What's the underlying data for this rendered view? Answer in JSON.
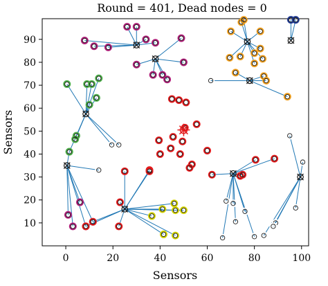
{
  "chart_data": {
    "type": "scatter",
    "title": "Round = 401, Dead nodes = 0",
    "xlabel": "Sensors",
    "ylabel": "Sensors",
    "xlim": [
      -10,
      103
    ],
    "ylim": [
      0,
      99
    ],
    "xticks": [
      0,
      20,
      40,
      60,
      80,
      100
    ],
    "yticks": [
      10,
      20,
      30,
      40,
      50,
      60,
      70,
      80,
      90
    ],
    "grid": false,
    "legend": "none",
    "sink": {
      "x": 50,
      "y": 50.5
    },
    "colors": {
      "link": "#1f77b4",
      "sink": "#e31a1c",
      "node_center": "#1f77b4",
      "ring_red": "#e41a1c",
      "ring_purple": "#b0207a",
      "ring_orange": "#f0a020",
      "ring_green": "#4daf4a",
      "ring_yellow": "#d4d400",
      "ring_navy": "#1f3a93",
      "ring_white": "#ffffff"
    },
    "clusters": [
      {
        "ring": "ring_purple",
        "head": {
          "x": 30,
          "y": 87.5
        },
        "members": [
          [
            26,
            95.5
          ],
          [
            30,
            95.5
          ],
          [
            34,
            90
          ],
          [
            38,
            88.5
          ],
          [
            8,
            89.5
          ],
          [
            12,
            87
          ],
          [
            18,
            86.5
          ]
        ]
      },
      {
        "ring": "ring_purple",
        "head": {
          "x": 38,
          "y": 81.5
        },
        "members": [
          [
            30,
            79
          ],
          [
            37,
            74.5
          ],
          [
            41,
            74.5
          ],
          [
            43,
            72.5
          ],
          [
            49,
            90.5
          ],
          [
            50,
            80
          ]
        ]
      },
      {
        "ring": "ring_orange",
        "head": {
          "x": 77,
          "y": 89
        },
        "members": [
          [
            74.5,
            97.5
          ],
          [
            75.5,
            98.5
          ],
          [
            70,
            93.5
          ],
          [
            82.5,
            93.5
          ],
          [
            69.5,
            82
          ],
          [
            74,
            82.5
          ],
          [
            80,
            84
          ],
          [
            82.5,
            86
          ],
          [
            83.5,
            81.5
          ],
          [
            80,
            79.5
          ]
        ]
      },
      {
        "ring": "ring_orange",
        "head": {
          "x": 78,
          "y": 72
        },
        "members": [
          [
            72,
            75.5
          ],
          [
            84,
            74
          ],
          [
            85,
            72
          ],
          [
            94,
            65
          ]
        ]
      },
      {
        "ring": "ring_white",
        "head": {
          "x": 78,
          "y": 72
        },
        "members": [
          [
            61.5,
            72
          ]
        ]
      },
      {
        "ring": "ring_navy",
        "head": {
          "x": 95.5,
          "y": 89.5
        },
        "members": [
          [
            95.5,
            98.5
          ],
          [
            97.5,
            98.5
          ]
        ]
      },
      {
        "ring": "ring_green",
        "head": {
          "x": 8.5,
          "y": 57.5
        },
        "members": [
          [
            0.5,
            70.5
          ],
          [
            9,
            70.5
          ],
          [
            11,
            70.5
          ],
          [
            14,
            73
          ],
          [
            10,
            61.5
          ],
          [
            13,
            64.5
          ],
          [
            4.5,
            48
          ],
          [
            4,
            46.5
          ],
          [
            1.5,
            41
          ]
        ]
      },
      {
        "ring": "ring_white",
        "head": {
          "x": 8.5,
          "y": 57.5
        },
        "members": [
          [
            19.5,
            44
          ],
          [
            22.5,
            44
          ]
        ]
      },
      {
        "ring": "ring_green",
        "head": {
          "x": 0.5,
          "y": 35
        },
        "members": [
          [
            1.5,
            41
          ]
        ]
      },
      {
        "ring": "ring_purple",
        "head": {
          "x": 0.5,
          "y": 35
        },
        "members": [
          [
            6,
            19
          ],
          [
            1,
            13.5
          ],
          [
            3,
            8.5
          ],
          [
            8.5,
            8.5
          ],
          [
            11.5,
            10.5
          ]
        ]
      },
      {
        "ring": "ring_white",
        "head": {
          "x": 0.5,
          "y": 35
        },
        "members": [
          [
            14,
            33
          ]
        ]
      },
      {
        "ring": "ring_red",
        "head": {
          "x": 25,
          "y": 16
        },
        "members": [
          [
            25,
            32.5
          ],
          [
            35.5,
            33
          ],
          [
            35.5,
            32.5
          ],
          [
            23,
            19
          ],
          [
            22.5,
            8.5
          ],
          [
            11.5,
            10.5
          ],
          [
            8.5,
            8.5
          ]
        ]
      },
      {
        "ring": "ring_yellow",
        "head": {
          "x": 25,
          "y": 16
        },
        "members": [
          [
            36.5,
            13
          ],
          [
            46,
            18.5
          ],
          [
            46.5,
            15.5
          ],
          [
            50,
            15.5
          ],
          [
            41,
            16
          ],
          [
            41.5,
            5
          ],
          [
            46.5,
            4.5
          ]
        ]
      },
      {
        "ring": "ring_red",
        "head": {
          "x": 71,
          "y": 31.5
        },
        "members": [
          [
            62,
            31
          ],
          [
            74,
            30.5
          ],
          [
            75,
            31
          ],
          [
            80.5,
            37.5
          ],
          [
            88.5,
            38
          ]
        ]
      },
      {
        "ring": "ring_white",
        "head": {
          "x": 71,
          "y": 31.5
        },
        "members": [
          [
            68,
            19.5
          ],
          [
            71,
            18.5
          ],
          [
            72,
            10.5
          ],
          [
            76,
            15
          ],
          [
            80,
            4
          ],
          [
            66.5,
            3.5
          ]
        ]
      },
      {
        "ring": "ring_white",
        "head": {
          "x": 99.5,
          "y": 30
        },
        "members": [
          [
            95,
            48
          ],
          [
            100.5,
            36.5
          ],
          [
            97.5,
            16.5
          ],
          [
            89,
            10
          ],
          [
            88,
            8.5
          ],
          [
            84,
            4.5
          ]
        ]
      }
    ],
    "unclustered": {
      "ring": "ring_red",
      "points": [
        [
          45,
          64
        ],
        [
          48,
          63.5
        ],
        [
          51,
          62.5
        ],
        [
          55.5,
          53
        ],
        [
          50.5,
          51.5
        ],
        [
          45.5,
          47.5
        ],
        [
          49.5,
          45.5
        ],
        [
          39.5,
          46
        ],
        [
          40,
          40
        ],
        [
          44.5,
          42.5
        ],
        [
          48.5,
          40
        ],
        [
          60,
          41.5
        ],
        [
          53.5,
          35.5
        ],
        [
          52.5,
          34
        ]
      ]
    }
  }
}
